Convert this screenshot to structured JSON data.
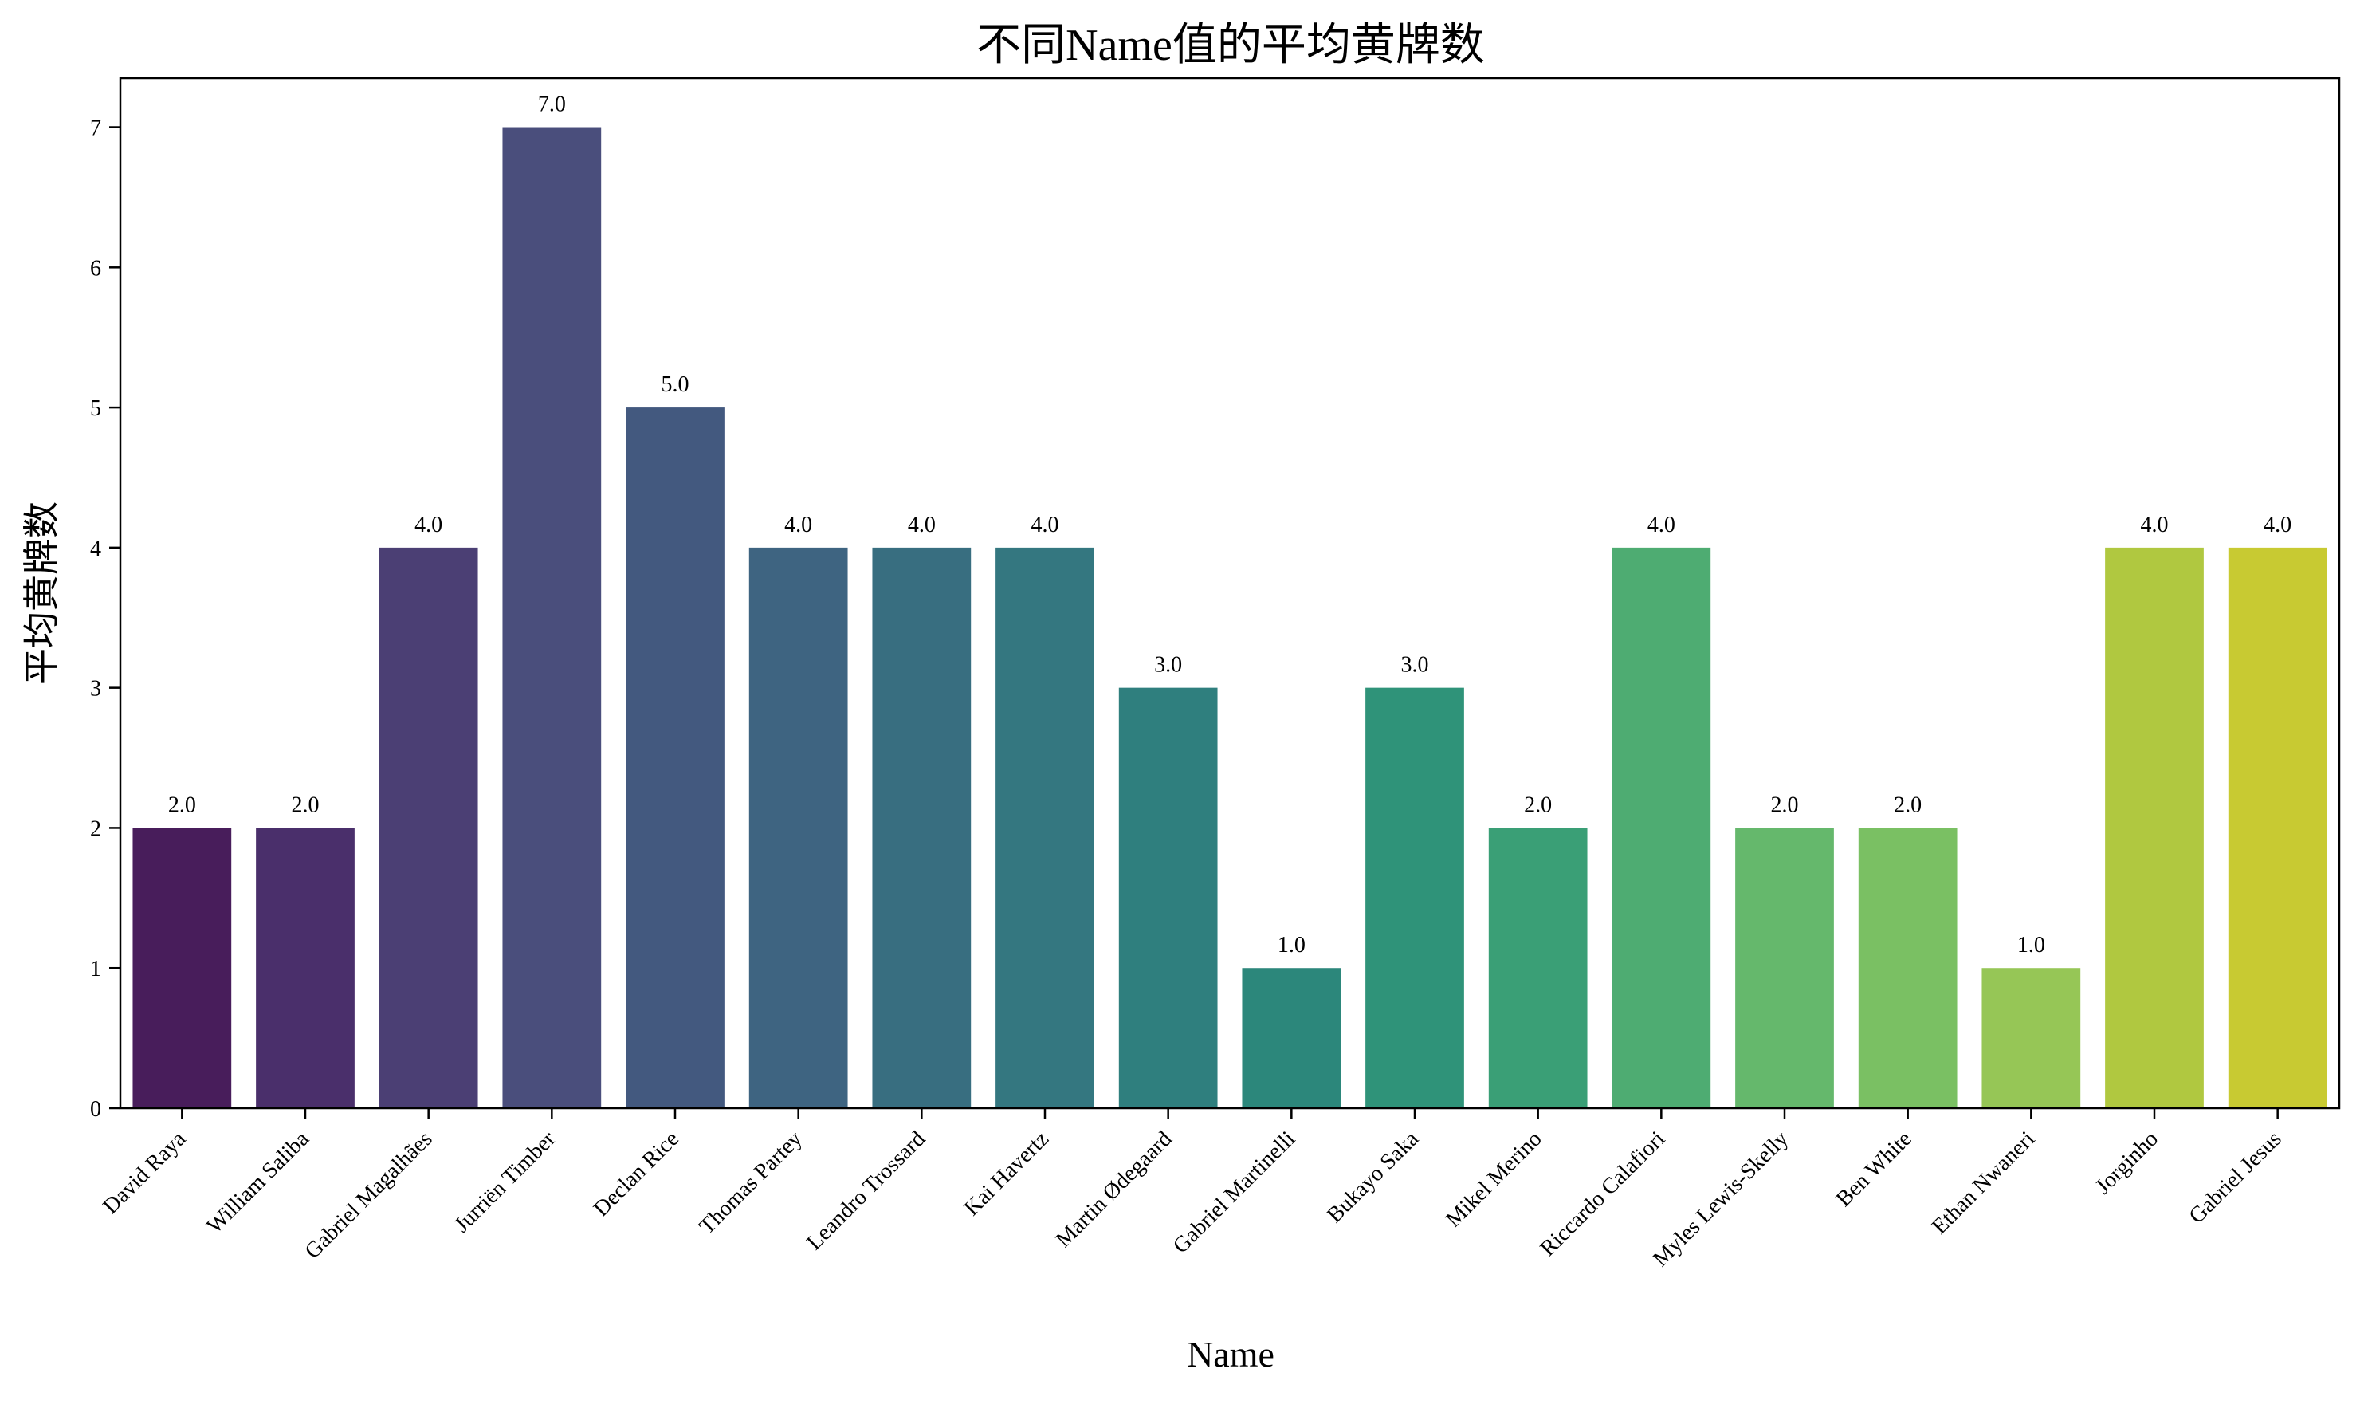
{
  "chart_data": {
    "type": "bar",
    "title": "不同Name值的平均黄牌数",
    "xlabel": "Name",
    "ylabel": "平均黄牌数",
    "categories": [
      "David Raya",
      "William Saliba",
      "Gabriel Magalhães",
      "Jurriën Timber",
      "Declan Rice",
      "Thomas Partey",
      "Leandro Trossard",
      "Kai Havertz",
      "Martin Ødegaard",
      "Gabriel Martinelli",
      "Bukayo Saka",
      "Mikel Merino",
      "Riccardo Calafiori",
      "Myles Lewis-Skelly",
      "Ben White",
      "Ethan Nwaneri",
      "Jorginho",
      "Gabriel Jesus"
    ],
    "values": [
      2.0,
      2.0,
      4.0,
      7.0,
      5.0,
      4.0,
      4.0,
      4.0,
      3.0,
      1.0,
      3.0,
      2.0,
      4.0,
      2.0,
      2.0,
      1.0,
      4.0,
      4.0
    ],
    "value_labels": [
      "2.0",
      "2.0",
      "4.0",
      "7.0",
      "5.0",
      "4.0",
      "4.0",
      "4.0",
      "3.0",
      "1.0",
      "3.0",
      "2.0",
      "4.0",
      "2.0",
      "2.0",
      "1.0",
      "4.0",
      "4.0"
    ],
    "colors": [
      "#481d5b",
      "#4a2f6b",
      "#4b3f74",
      "#4a4e7c",
      "#43597f",
      "#3e6481",
      "#386e80",
      "#347780",
      "#2f7f7e",
      "#2c877b",
      "#2f9379",
      "#3a9f76",
      "#4eac72",
      "#65b86c",
      "#7ac063",
      "#96c656",
      "#b0c840",
      "#c8ca32"
    ],
    "yticks": [
      0,
      1,
      2,
      3,
      4,
      5,
      6,
      7
    ],
    "ylim": [
      0,
      7.35
    ],
    "grid": false,
    "palette": "viridis"
  }
}
